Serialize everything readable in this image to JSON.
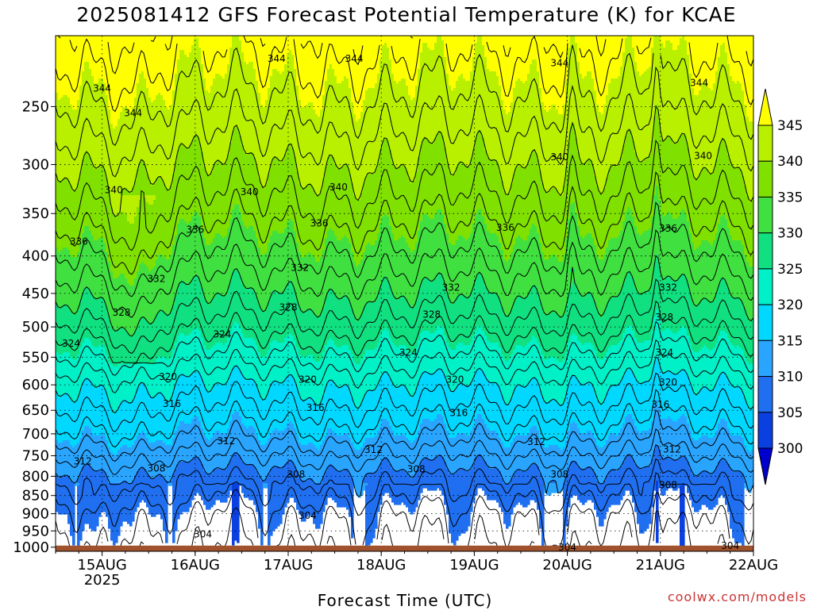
{
  "title": "2025081412 GFS Forecast Potential Temperature (K) for KCAE",
  "credit": "coolwx.com/models",
  "chart_data": {
    "type": "heatmap",
    "title": "2025081412 GFS Forecast Potential Temperature (K) for KCAE",
    "xlabel": "Forecast Time (UTC)",
    "ylabel": "",
    "x_ticks": [
      {
        "label": "15AUG",
        "sub": "2025",
        "hours": 12
      },
      {
        "label": "16AUG",
        "sub": "",
        "hours": 36
      },
      {
        "label": "17AUG",
        "sub": "",
        "hours": 60
      },
      {
        "label": "18AUG",
        "sub": "",
        "hours": 84
      },
      {
        "label": "19AUG",
        "sub": "",
        "hours": 108
      },
      {
        "label": "20AUG",
        "sub": "",
        "hours": 132
      },
      {
        "label": "21AUG",
        "sub": "",
        "hours": 156
      },
      {
        "label": "22AUG",
        "sub": "",
        "hours": 180
      }
    ],
    "x_range_hours": [
      0,
      180
    ],
    "y_ticks": [
      250,
      300,
      350,
      400,
      450,
      500,
      550,
      600,
      650,
      700,
      750,
      800,
      850,
      900,
      950,
      1000
    ],
    "y_range": [
      200,
      1013
    ],
    "y_scale": "log-pressure",
    "grid": true,
    "colorbar": {
      "levels": [
        300,
        305,
        310,
        315,
        320,
        325,
        330,
        335,
        340,
        345
      ],
      "colors": [
        "#0000cc",
        "#0a3fe0",
        "#1f6ff0",
        "#2aa5ff",
        "#00d8ff",
        "#00f0c8",
        "#10e080",
        "#40e040",
        "#80e000",
        "#b8f000",
        "#ffff00"
      ],
      "extend": "both",
      "placement": "right"
    },
    "contour_interval": 2,
    "surface_color": "#a0522d",
    "contour_labels": [
      {
        "value": 344,
        "hours": 57,
        "pressure": 215
      },
      {
        "value": 344,
        "hours": 77,
        "pressure": 215
      },
      {
        "value": 344,
        "hours": 130,
        "pressure": 218
      },
      {
        "value": 344,
        "hours": 166,
        "pressure": 232
      },
      {
        "value": 344,
        "hours": 20,
        "pressure": 255
      },
      {
        "value": 344,
        "hours": 12,
        "pressure": 236
      },
      {
        "value": 340,
        "hours": 15,
        "pressure": 325
      },
      {
        "value": 340,
        "hours": 50,
        "pressure": 327
      },
      {
        "value": 340,
        "hours": 73,
        "pressure": 322
      },
      {
        "value": 340,
        "hours": 130,
        "pressure": 293
      },
      {
        "value": 340,
        "hours": 167,
        "pressure": 292
      },
      {
        "value": 336,
        "hours": 6,
        "pressure": 382
      },
      {
        "value": 336,
        "hours": 36,
        "pressure": 368
      },
      {
        "value": 336,
        "hours": 68,
        "pressure": 361
      },
      {
        "value": 336,
        "hours": 116,
        "pressure": 366
      },
      {
        "value": 336,
        "hours": 158,
        "pressure": 367
      },
      {
        "value": 332,
        "hours": 26,
        "pressure": 430
      },
      {
        "value": 332,
        "hours": 63,
        "pressure": 415
      },
      {
        "value": 332,
        "hours": 102,
        "pressure": 442
      },
      {
        "value": 332,
        "hours": 158,
        "pressure": 442
      },
      {
        "value": 328,
        "hours": 17,
        "pressure": 478
      },
      {
        "value": 328,
        "hours": 60,
        "pressure": 470
      },
      {
        "value": 328,
        "hours": 97,
        "pressure": 481
      },
      {
        "value": 328,
        "hours": 157,
        "pressure": 485
      },
      {
        "value": 324,
        "hours": 4,
        "pressure": 527
      },
      {
        "value": 324,
        "hours": 43,
        "pressure": 512
      },
      {
        "value": 324,
        "hours": 91,
        "pressure": 542
      },
      {
        "value": 324,
        "hours": 157,
        "pressure": 542
      },
      {
        "value": 320,
        "hours": 29,
        "pressure": 585
      },
      {
        "value": 320,
        "hours": 65,
        "pressure": 590
      },
      {
        "value": 320,
        "hours": 103,
        "pressure": 590
      },
      {
        "value": 320,
        "hours": 158,
        "pressure": 595
      },
      {
        "value": 316,
        "hours": 30,
        "pressure": 637
      },
      {
        "value": 316,
        "hours": 67,
        "pressure": 645
      },
      {
        "value": 316,
        "hours": 104,
        "pressure": 655
      },
      {
        "value": 316,
        "hours": 156,
        "pressure": 638
      },
      {
        "value": 312,
        "hours": 7,
        "pressure": 763
      },
      {
        "value": 312,
        "hours": 44,
        "pressure": 716
      },
      {
        "value": 312,
        "hours": 82,
        "pressure": 736
      },
      {
        "value": 312,
        "hours": 124,
        "pressure": 718
      },
      {
        "value": 312,
        "hours": 159,
        "pressure": 735
      },
      {
        "value": 308,
        "hours": 26,
        "pressure": 780
      },
      {
        "value": 308,
        "hours": 62,
        "pressure": 795
      },
      {
        "value": 308,
        "hours": 93,
        "pressure": 782
      },
      {
        "value": 308,
        "hours": 130,
        "pressure": 795
      },
      {
        "value": 308,
        "hours": 158,
        "pressure": 822
      },
      {
        "value": 304,
        "hours": 65,
        "pressure": 905
      },
      {
        "value": 304,
        "hours": 38,
        "pressure": 960
      },
      {
        "value": 304,
        "hours": 132,
        "pressure": 1000
      },
      {
        "value": 304,
        "hours": 174,
        "pressure": 995
      }
    ]
  }
}
